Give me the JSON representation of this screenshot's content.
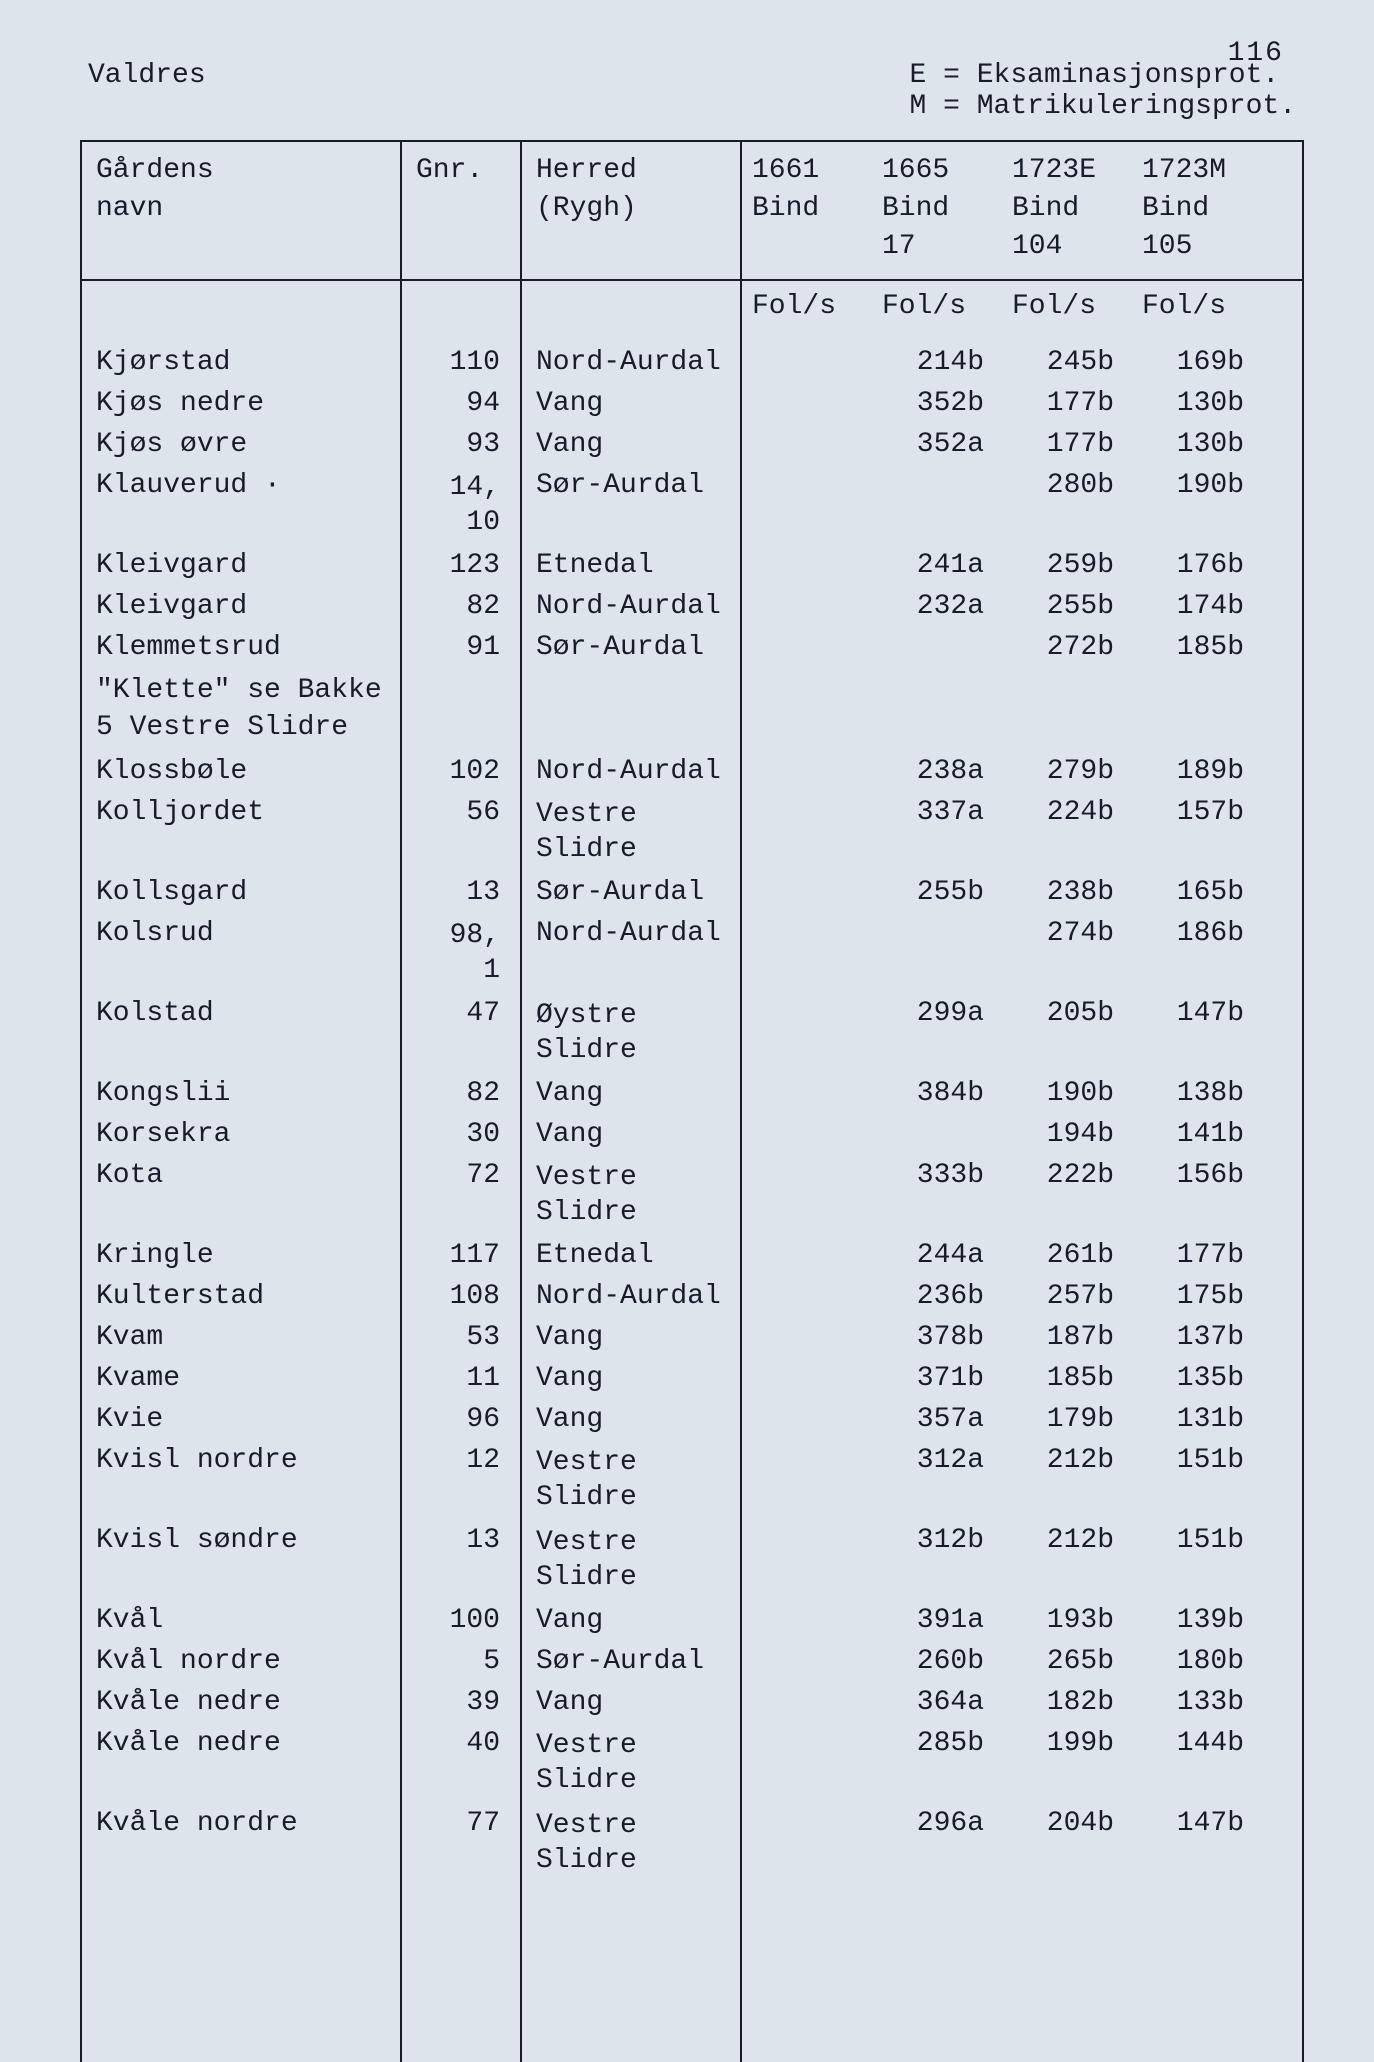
{
  "page_number": "116",
  "region": "Valdres",
  "legend": {
    "line1": "E = Eksaminasjonsprot.",
    "line2": "M = Matrikuleringsprot."
  },
  "columns": {
    "name": "Gårdens\nnavn",
    "gnr": "Gnr.",
    "herred": "Herred\n(Rygh)",
    "y1661": "1661\nBind",
    "y1665": "1665\nBind\n17",
    "y1723e": "1723E\nBind\n104",
    "y1723m": "1723M\nBind\n105",
    "fols": "Fol/s"
  },
  "rows": [
    {
      "name": "Kjørstad",
      "gnr": "110",
      "herred": "Nord-Aurdal",
      "y1661": "",
      "y1665": "214b",
      "y1723e": "245b",
      "y1723m": "169b"
    },
    {
      "name": "Kjøs nedre",
      "gnr": "94",
      "herred": "Vang",
      "y1661": "",
      "y1665": "352b",
      "y1723e": "177b",
      "y1723m": "130b"
    },
    {
      "name": "Kjøs øvre",
      "gnr": "93",
      "herred": "Vang",
      "y1661": "",
      "y1665": "352a",
      "y1723e": "177b",
      "y1723m": "130b"
    },
    {
      "name": "Klauverud   ·",
      "gnr": "14,\n10",
      "herred": "Sør-Aurdal",
      "y1661": "",
      "y1665": "",
      "y1723e": "280b",
      "y1723m": "190b"
    },
    {
      "name": "Kleivgard",
      "gnr": "123",
      "herred": "Etnedal",
      "y1661": "",
      "y1665": "241a",
      "y1723e": "259b",
      "y1723m": "176b"
    },
    {
      "name": "Kleivgard",
      "gnr": "82",
      "herred": "Nord-Aurdal",
      "y1661": "",
      "y1665": "232a",
      "y1723e": "255b",
      "y1723m": "174b"
    },
    {
      "name": "Klemmetsrud",
      "gnr": "91",
      "herred": "Sør-Aurdal",
      "y1661": "",
      "y1665": "",
      "y1723e": "272b",
      "y1723m": "185b"
    },
    {
      "name": "\"Klette\" se Bakke\n5 Vestre Slidre",
      "gnr": "",
      "herred": "",
      "y1661": "",
      "y1665": "",
      "y1723e": "",
      "y1723m": "",
      "note": true
    },
    {
      "name": "Klossbøle",
      "gnr": "102",
      "herred": "Nord-Aurdal",
      "y1661": "",
      "y1665": "238a",
      "y1723e": "279b",
      "y1723m": "189b"
    },
    {
      "name": "Kolljordet",
      "gnr": "56",
      "herred": "Vestre\nSlidre",
      "y1661": "",
      "y1665": "337a",
      "y1723e": "224b",
      "y1723m": "157b"
    },
    {
      "name": "Kollsgard",
      "gnr": "13",
      "herred": "Sør-Aurdal",
      "y1661": "",
      "y1665": "255b",
      "y1723e": "238b",
      "y1723m": "165b"
    },
    {
      "name": "Kolsrud",
      "gnr": "98,\n1",
      "herred": "Nord-Aurdal",
      "y1661": "",
      "y1665": "",
      "y1723e": "274b",
      "y1723m": "186b"
    },
    {
      "name": "Kolstad",
      "gnr": "47",
      "herred": "Øystre\nSlidre",
      "y1661": "",
      "y1665": "299a",
      "y1723e": "205b",
      "y1723m": "147b"
    },
    {
      "name": "Kongslii",
      "gnr": "82",
      "herred": "Vang",
      "y1661": "",
      "y1665": "384b",
      "y1723e": "190b",
      "y1723m": "138b"
    },
    {
      "name": "Korsekra",
      "gnr": "30",
      "herred": "Vang",
      "y1661": "",
      "y1665": "",
      "y1723e": "194b",
      "y1723m": "141b"
    },
    {
      "name": "Kota",
      "gnr": "72",
      "herred": "Vestre\nSlidre",
      "y1661": "",
      "y1665": "333b",
      "y1723e": "222b",
      "y1723m": "156b"
    },
    {
      "name": "Kringle",
      "gnr": "117",
      "herred": "Etnedal",
      "y1661": "",
      "y1665": "244a",
      "y1723e": "261b",
      "y1723m": "177b"
    },
    {
      "name": "Kulterstad",
      "gnr": "108",
      "herred": "Nord-Aurdal",
      "y1661": "",
      "y1665": "236b",
      "y1723e": "257b",
      "y1723m": "175b"
    },
    {
      "name": "Kvam",
      "gnr": "53",
      "herred": "Vang",
      "y1661": "",
      "y1665": "378b",
      "y1723e": "187b",
      "y1723m": "137b"
    },
    {
      "name": "Kvame",
      "gnr": "11",
      "herred": "Vang",
      "y1661": "",
      "y1665": "371b",
      "y1723e": "185b",
      "y1723m": "135b"
    },
    {
      "name": "Kvie",
      "gnr": "96",
      "herred": "Vang",
      "y1661": "",
      "y1665": "357a",
      "y1723e": "179b",
      "y1723m": "131b"
    },
    {
      "name": "Kvisl nordre",
      "gnr": "12",
      "herred": "Vestre\nSlidre",
      "y1661": "",
      "y1665": "312a",
      "y1723e": "212b",
      "y1723m": "151b"
    },
    {
      "name": "Kvisl søndre",
      "gnr": "13",
      "herred": "Vestre\nSlidre",
      "y1661": "",
      "y1665": "312b",
      "y1723e": "212b",
      "y1723m": "151b"
    },
    {
      "name": "Kvål",
      "gnr": "100",
      "herred": "Vang",
      "y1661": "",
      "y1665": "391a",
      "y1723e": "193b",
      "y1723m": "139b"
    },
    {
      "name": "Kvål nordre",
      "gnr": "5",
      "herred": "Sør-Aurdal",
      "y1661": "",
      "y1665": "260b",
      "y1723e": "265b",
      "y1723m": "180b"
    },
    {
      "name": "Kvåle nedre",
      "gnr": "39",
      "herred": "Vang",
      "y1661": "",
      "y1665": "364a",
      "y1723e": "182b",
      "y1723m": "133b"
    },
    {
      "name": "Kvåle nedre",
      "gnr": "40",
      "herred": "Vestre\nSlidre",
      "y1661": "",
      "y1665": "285b",
      "y1723e": "199b",
      "y1723m": "144b"
    },
    {
      "name": "Kvåle nordre",
      "gnr": "77",
      "herred": "Vestre\nSlidre",
      "y1661": "",
      "y1665": "296a",
      "y1723e": "204b",
      "y1723m": "147b"
    }
  ]
}
